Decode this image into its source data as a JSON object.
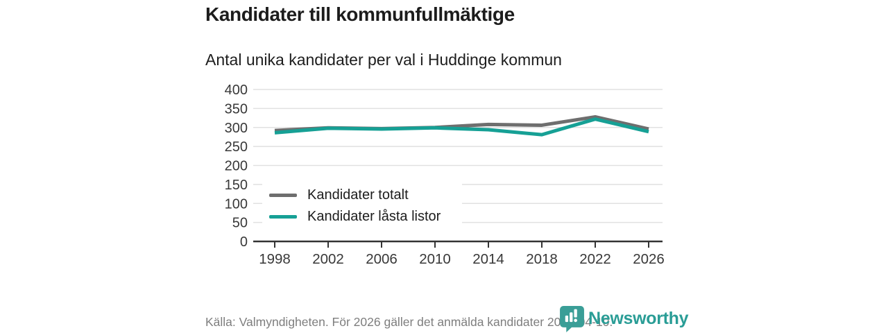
{
  "header": {
    "title": "Kandidater till kommunfullmäktige",
    "subtitle": "Antal unika kandidater per val i Huddinge kommun"
  },
  "footer": {
    "source_text": "Källa: Valmyndigheten. För 2026 gäller det anmälda kandidater 2026-04-10."
  },
  "branding": {
    "logo_text": "Newsworthy",
    "logo_color": "#2a9d96",
    "logo_icon_color": "#3a9e97"
  },
  "chart_data": {
    "type": "line",
    "title": "Kandidater till kommunfullmäktige",
    "subtitle": "Antal unika kandidater per val i Huddinge kommun",
    "x": [
      1998,
      2002,
      2006,
      2010,
      2014,
      2018,
      2022,
      2026
    ],
    "series": [
      {
        "name": "Kandidater totalt",
        "color": "#6e6e6e",
        "values": [
          292,
          299,
          297,
          300,
          308,
          306,
          328,
          296
        ]
      },
      {
        "name": "Kandidater låsta listor",
        "color": "#16a095",
        "values": [
          286,
          298,
          296,
          299,
          294,
          281,
          322,
          289
        ]
      }
    ],
    "ylim": [
      0,
      400
    ],
    "ytick_step": 50,
    "grid": true,
    "grid_color": "#e1e1e1",
    "axis_color": "#333333",
    "tick_label_color": "#383838",
    "legend_position": "inside-bottom-left"
  }
}
